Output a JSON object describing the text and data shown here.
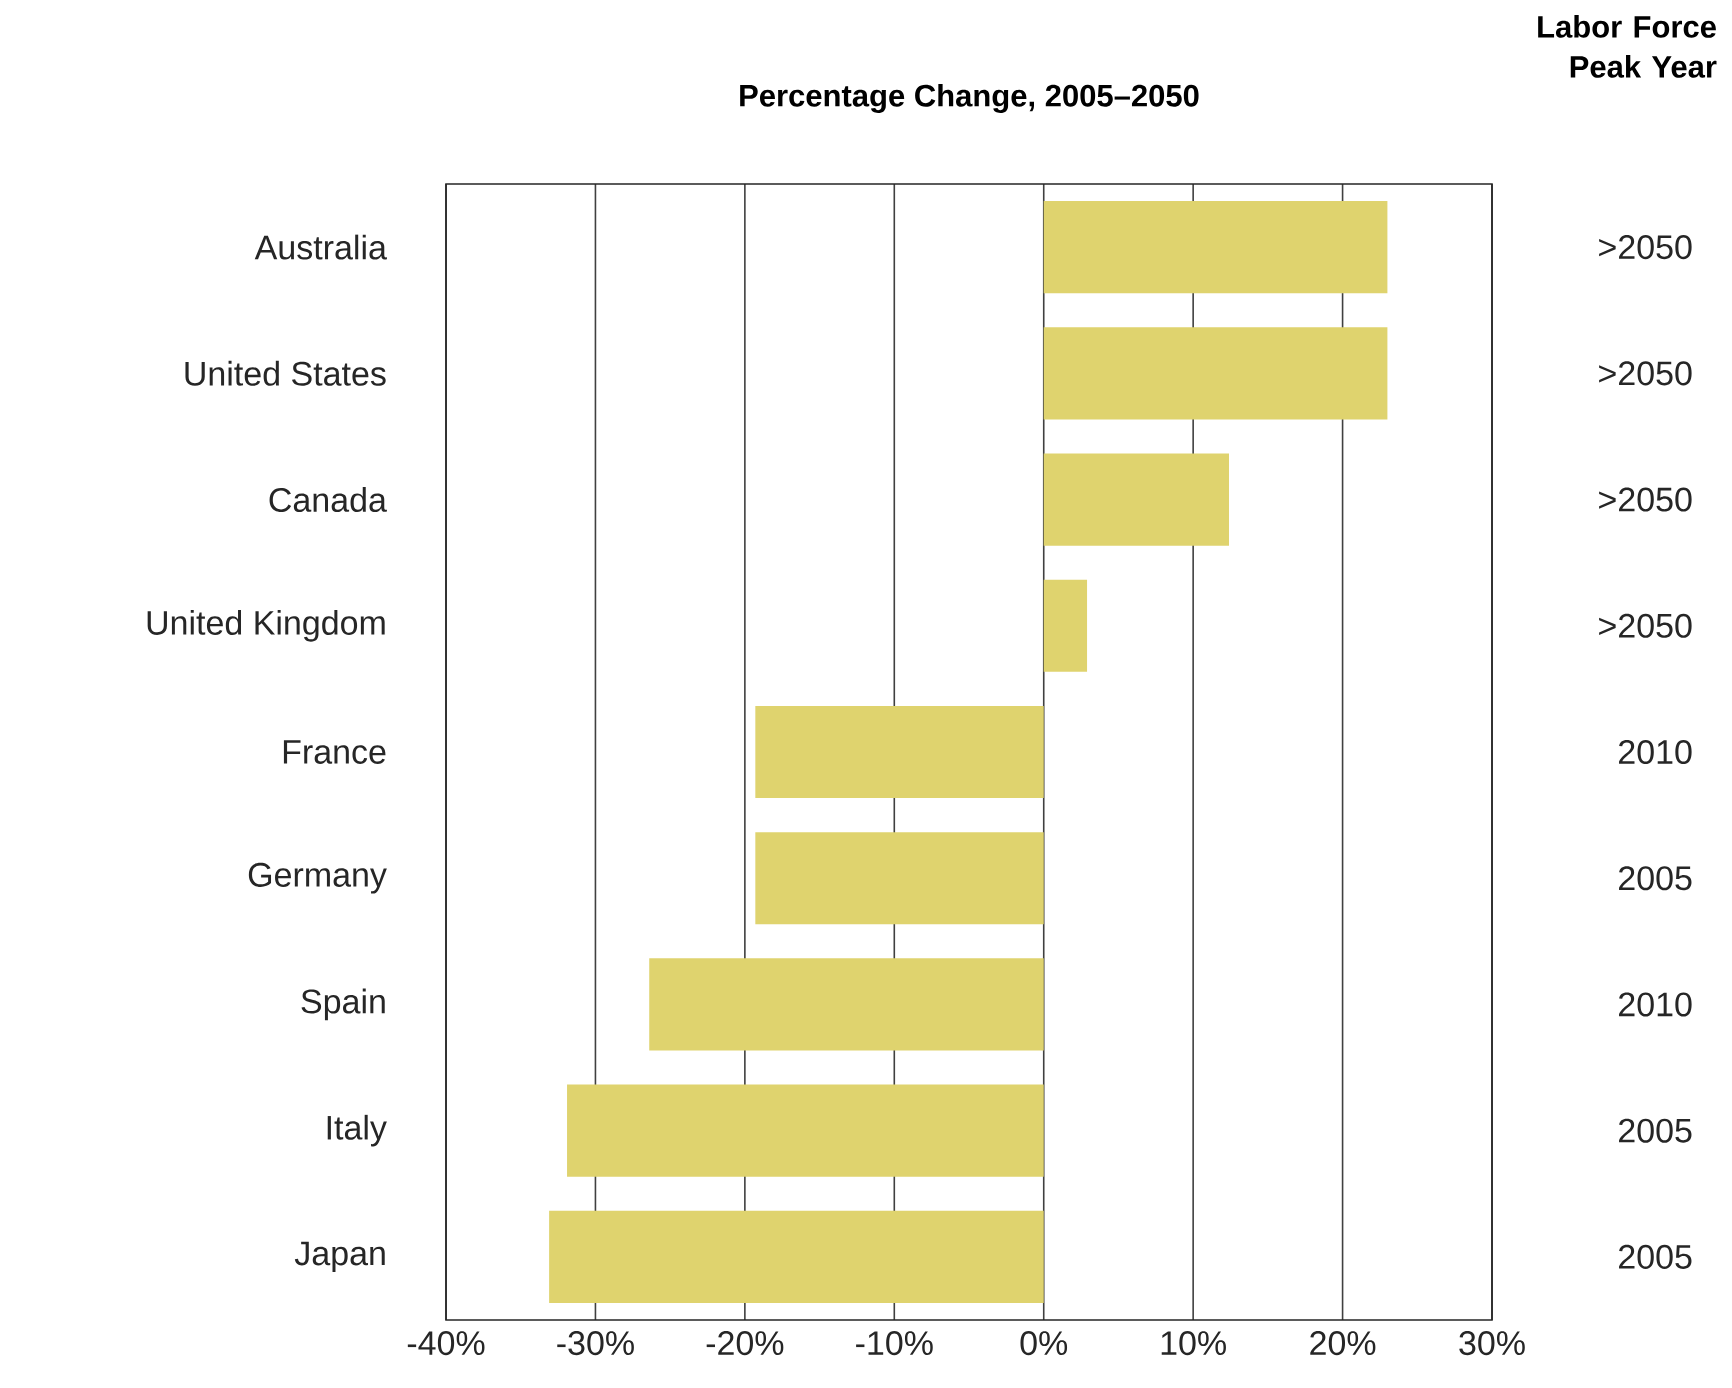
{
  "chart_data": {
    "type": "bar",
    "orientation": "horizontal",
    "title": "Percentage Change, 2005–2050",
    "y2label": "Labor Force Peak Year",
    "categories": [
      "Australia",
      "United States",
      "Canada",
      "United Kingdom",
      "France",
      "Germany",
      "Spain",
      "Italy",
      "Japan"
    ],
    "values": [
      23.0,
      23.0,
      12.4,
      2.9,
      -19.3,
      -19.3,
      -26.4,
      -31.9,
      -33.1
    ],
    "color": "#dfd36e",
    "xlim": [
      -40,
      30
    ],
    "xticks": [
      {
        "value": -40,
        "label": "-40%"
      },
      {
        "value": -30,
        "label": "-30%"
      },
      {
        "value": -20,
        "label": "-20%"
      },
      {
        "value": -10,
        "label": "-10%"
      },
      {
        "value": 0,
        "label": "0%"
      },
      {
        "value": 10,
        "label": "10%"
      },
      {
        "value": 20,
        "label": "20%"
      },
      {
        "value": 30,
        "label": "30%"
      }
    ],
    "grid": "x",
    "annotations": [
      ">2050",
      ">2050",
      ">2050",
      ">2050",
      "2010",
      "2005",
      "2010",
      "2005",
      "2005"
    ]
  }
}
